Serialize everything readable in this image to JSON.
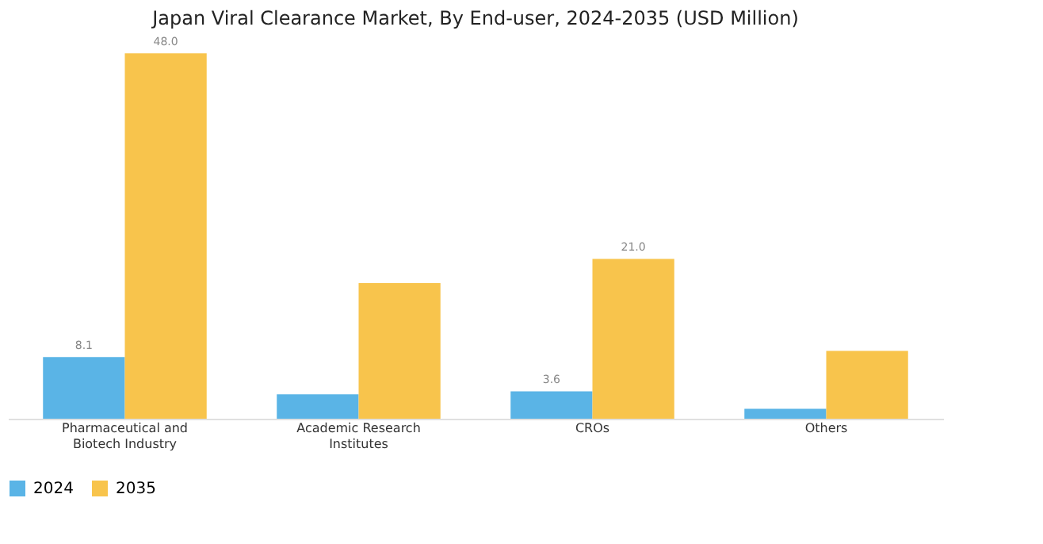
{
  "chart_data": {
    "type": "bar",
    "title": "Japan Viral Clearance Market, By End-user, 2024-2035 (USD Million)",
    "categories": [
      "Pharmaceutical and Biotech Industry",
      "Academic Research Institutes",
      "CROs",
      "Others"
    ],
    "series": [
      {
        "name": "2024",
        "color": "#5ab4e6",
        "values": [
          8.1,
          3.2,
          3.6,
          1.3
        ],
        "value_labels": [
          "8.1",
          null,
          "3.6",
          null
        ]
      },
      {
        "name": "2035",
        "color": "#f8c44c",
        "values": [
          48.0,
          17.8,
          21.0,
          8.9
        ],
        "value_labels": [
          "48.0",
          null,
          "21.0",
          null
        ]
      }
    ],
    "legend": "bottom",
    "grid": false
  }
}
